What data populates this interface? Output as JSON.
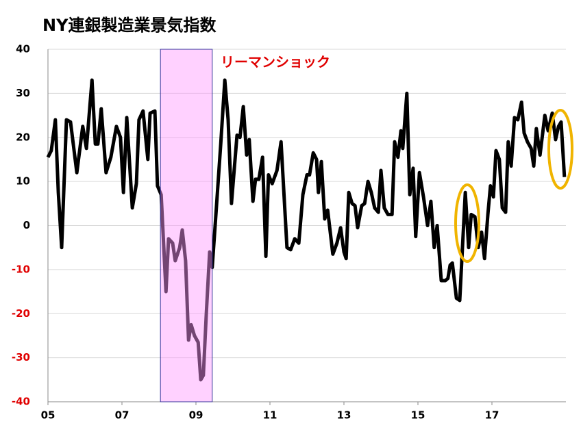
{
  "chart_data": {
    "type": "line",
    "title": "NY連銀製造業景気指数",
    "annotation": "リーマンショック",
    "x": [
      2005.0,
      2005.09,
      2005.2,
      2005.28,
      2005.37,
      2005.5,
      2005.61,
      2005.78,
      2005.94,
      2006.04,
      2006.19,
      2006.28,
      2006.35,
      2006.44,
      2006.57,
      2006.7,
      2006.85,
      2006.96,
      2007.04,
      2007.13,
      2007.28,
      2007.39,
      2007.46,
      2007.57,
      2007.7,
      2007.76,
      2007.89,
      2007.96,
      2008.06,
      2008.19,
      2008.26,
      2008.37,
      2008.44,
      2008.56,
      2008.63,
      2008.72,
      2008.8,
      2008.87,
      2008.96,
      2009.06,
      2009.13,
      2009.2,
      2009.28,
      2009.37,
      2009.44,
      2009.56,
      2009.67,
      2009.78,
      2009.87,
      2009.96,
      2010.11,
      2010.19,
      2010.28,
      2010.37,
      2010.44,
      2010.54,
      2010.61,
      2010.7,
      2010.8,
      2010.89,
      2010.96,
      2011.06,
      2011.19,
      2011.3,
      2011.46,
      2011.56,
      2011.67,
      2011.78,
      2011.89,
      2012.0,
      2012.07,
      2012.17,
      2012.26,
      2012.31,
      2012.39,
      2012.48,
      2012.56,
      2012.7,
      2012.81,
      2012.91,
      2013.0,
      2013.06,
      2013.13,
      2013.22,
      2013.3,
      2013.37,
      2013.48,
      2013.56,
      2013.65,
      2013.74,
      2013.83,
      2013.93,
      2014.0,
      2014.09,
      2014.19,
      2014.3,
      2014.37,
      2014.46,
      2014.54,
      2014.59,
      2014.7,
      2014.78,
      2014.87,
      2014.94,
      2015.04,
      2015.15,
      2015.26,
      2015.35,
      2015.44,
      2015.52,
      2015.63,
      2015.74,
      2015.81,
      2015.87,
      2015.93,
      2016.04,
      2016.13,
      2016.28,
      2016.37,
      2016.44,
      2016.54,
      2016.63,
      2016.72,
      2016.8,
      2016.89,
      2016.96,
      2017.04,
      2017.11,
      2017.2,
      2017.28,
      2017.37,
      2017.44,
      2017.52,
      2017.61,
      2017.7,
      2017.8,
      2017.87,
      2017.96,
      2018.06,
      2018.13,
      2018.2,
      2018.3,
      2018.43,
      2018.52,
      2018.63,
      2018.72,
      2018.8,
      2018.87,
      2018.96
    ],
    "series": [
      {
        "color": "#000000",
        "values": [
          15.5,
          17,
          24,
          7.5,
          -5,
          24,
          23.5,
          12,
          22.5,
          17.5,
          33,
          18.5,
          18.5,
          26.5,
          12,
          15.5,
          22.5,
          20,
          7.5,
          24.5,
          4,
          9.5,
          24,
          26,
          15,
          25.5,
          26,
          9,
          7,
          -15,
          -3,
          -4,
          -8,
          -5,
          -1,
          -8,
          -26,
          -22.5,
          -25,
          -26.5,
          -35,
          -34,
          -20,
          -6,
          -9.5,
          5,
          18.5,
          33,
          24,
          5,
          20.5,
          20,
          27,
          16,
          19.5,
          5.5,
          10.5,
          10.5,
          15.5,
          -7,
          11.5,
          9.5,
          12.5,
          19,
          -5,
          -5.5,
          -3,
          -4,
          7,
          11.5,
          11.5,
          16.5,
          15,
          7.5,
          14.5,
          1.5,
          3.5,
          -6.5,
          -4,
          -0.5,
          -6,
          -7.5,
          7.5,
          5,
          4.5,
          -0.5,
          4.5,
          5,
          10,
          7.5,
          4,
          3,
          12.5,
          4,
          2.5,
          2.5,
          19,
          15.5,
          21.5,
          17.5,
          30,
          7,
          13,
          -2.5,
          12,
          6.5,
          0,
          5.5,
          -5,
          0,
          -12.5,
          -12.5,
          -12,
          -9,
          -8.5,
          -16.5,
          -17,
          7.5,
          -5,
          2.5,
          2,
          -5,
          -1.5,
          -7.5,
          2.5,
          9,
          6.5,
          17,
          15,
          4,
          3,
          19,
          13.5,
          24.5,
          24,
          28,
          21,
          19,
          17.5,
          13.5,
          22,
          16,
          25,
          21.5,
          25.5,
          19.5,
          22.5,
          23.5,
          11
        ]
      }
    ],
    "shade": [
      2008.04,
      2009.44
    ],
    "shade_color": "#ff99ff",
    "xlim": [
      2005,
      2019
    ],
    "xticks": [
      {
        "value": 2005,
        "label": "05"
      },
      {
        "value": 2007,
        "label": "07"
      },
      {
        "value": 2009,
        "label": "09"
      },
      {
        "value": 2011,
        "label": "11"
      },
      {
        "value": 2013,
        "label": "13"
      },
      {
        "value": 2015,
        "label": "15"
      },
      {
        "value": 2017,
        "label": "17"
      }
    ],
    "ylim": [
      -40,
      40
    ],
    "yticks": [
      -40,
      -30,
      -20,
      -10,
      0,
      10,
      20,
      30,
      40
    ],
    "negative_tick_color": "#e00000",
    "annotation_color": "#e00000",
    "grid": true
  }
}
